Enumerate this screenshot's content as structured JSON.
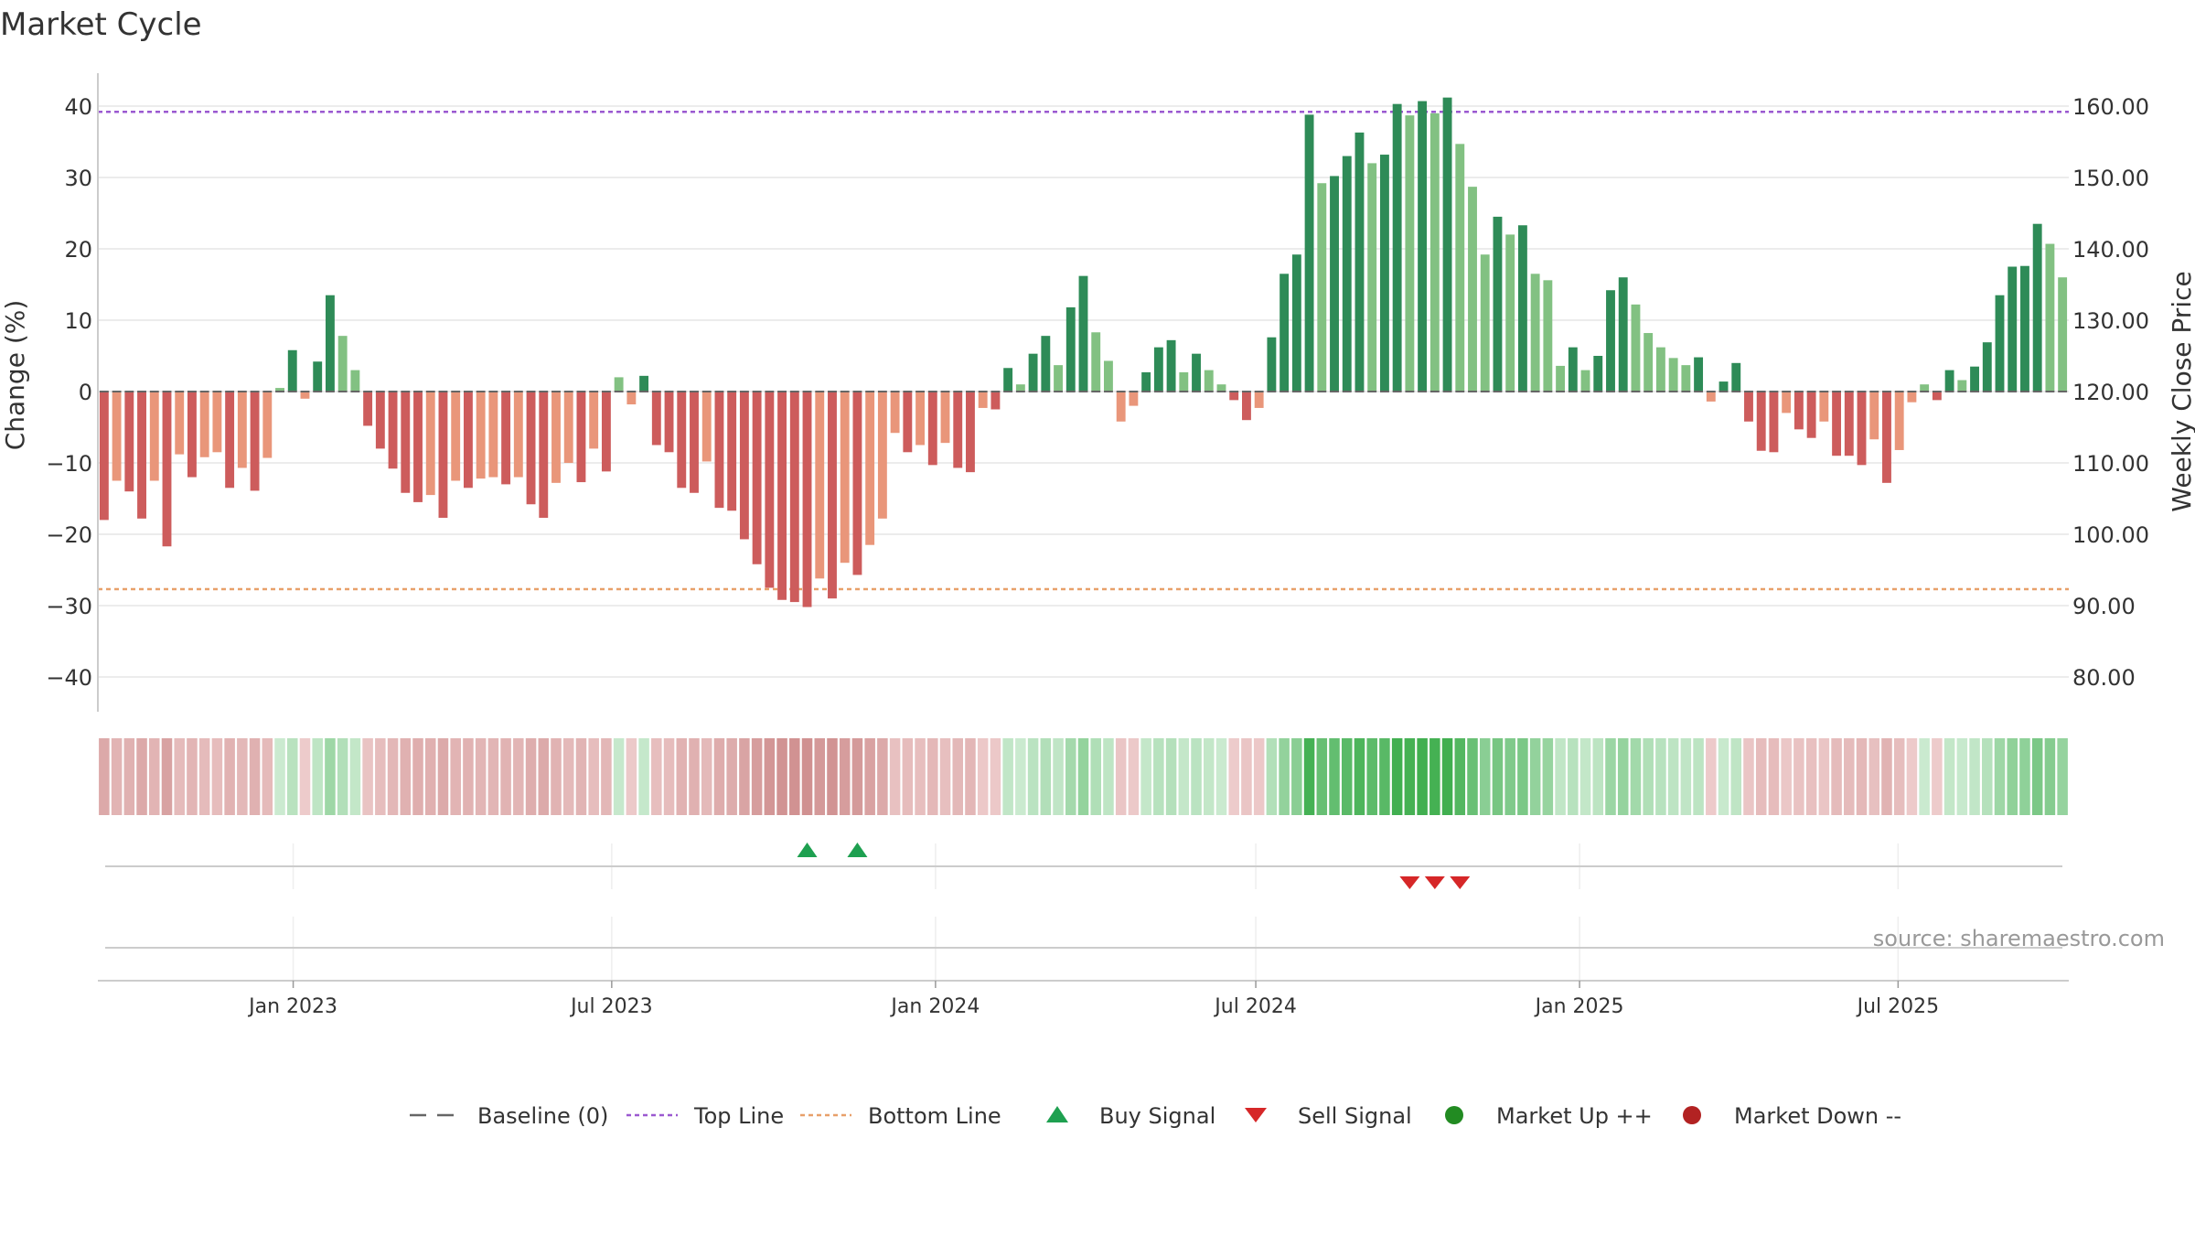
{
  "chart_data": {
    "type": "bar",
    "title": "Market Cycle",
    "ylabel": "Change (%)",
    "y2label": "Weekly Close Price",
    "ylim": [
      -45,
      45
    ],
    "y2lim": [
      75,
      163
    ],
    "y_ticks": [
      40,
      30,
      20,
      10,
      0,
      -10,
      -20,
      -30,
      -40
    ],
    "y_tick_labels": [
      "40",
      "30",
      "20",
      "10",
      "0",
      "−10",
      "−20",
      "−30",
      "−40"
    ],
    "y2_ticks": [
      "160.00",
      "150.00",
      "140.00",
      "130.00",
      "120.00",
      "110.00",
      "100.00",
      "90.00",
      "80.00"
    ],
    "x_range": [
      "2022-09-12",
      "2025-10-06"
    ],
    "x_ticks": [
      {
        "date": "2023-01-01",
        "label": "Jan 2023"
      },
      {
        "date": "2023-07-01",
        "label": "Jul 2023"
      },
      {
        "date": "2024-01-01",
        "label": "Jan 2024"
      },
      {
        "date": "2024-07-01",
        "label": "Jul 2024"
      },
      {
        "date": "2025-01-01",
        "label": "Jan 2025"
      },
      {
        "date": "2025-07-01",
        "label": "Jul 2025"
      }
    ],
    "first_week": "2022-09-12",
    "values": [
      -18,
      -12.5,
      -14,
      -17.8,
      -12.5,
      -21.7,
      -8.8,
      -12,
      -9.2,
      -8.5,
      -13.5,
      -10.7,
      -13.9,
      -9.3,
      0.5,
      5.8,
      -1,
      4.2,
      13.5,
      7.8,
      3,
      -4.8,
      -8,
      -10.8,
      -14.2,
      -15.5,
      -14.5,
      -17.7,
      -12.5,
      -13.5,
      -12.2,
      -12,
      -13,
      -12,
      -15.8,
      -17.7,
      -12.8,
      -10,
      -12.7,
      -8,
      -11.2,
      2,
      -1.8,
      2.2,
      -7.5,
      -8.5,
      -13.5,
      -14.2,
      -9.8,
      -16.3,
      -16.7,
      -20.7,
      -24.2,
      -27.5,
      -29.2,
      -29.5,
      -30.2,
      -26.2,
      -29,
      -24,
      -25.7,
      -21.5,
      -17.8,
      -5.8,
      -8.5,
      -7.5,
      -10.3,
      -7.2,
      -10.7,
      -11.3,
      -2.3,
      -2.5,
      3.3,
      1,
      5.3,
      7.8,
      3.7,
      11.8,
      16.2,
      8.3,
      4.3,
      -4.2,
      -2,
      2.7,
      6.2,
      7.2,
      2.7,
      5.3,
      3,
      1,
      -1.2,
      -4,
      -2.3,
      7.6,
      16.5,
      19.2,
      38.8,
      29.2,
      30.2,
      33,
      36.3,
      32,
      33.2,
      40.3,
      38.7,
      40.7,
      39,
      41.2,
      34.7,
      28.7,
      19.2,
      24.5,
      22,
      23.3,
      16.5,
      15.6,
      3.6,
      6.2,
      3,
      5,
      14.2,
      16,
      12.2,
      8.2,
      6.2,
      4.7,
      3.7,
      4.8,
      -1.4,
      1.4,
      4,
      -4.2,
      -8.3,
      -8.5,
      -3,
      -5.3,
      -6.5,
      -4.2,
      -9,
      -9,
      -10.3,
      -6.7,
      -12.8,
      -8.2,
      -1.5,
      1,
      -1.2,
      3,
      1.6,
      3.5,
      6.9,
      13.5,
      17.5,
      17.6,
      23.5,
      20.7,
      16
    ],
    "top_line": 39.2,
    "bottom_line": -27.7,
    "buy_signals": [
      56,
      60
    ],
    "sell_signals": [
      104,
      106,
      108
    ],
    "market_up_signals": [],
    "market_down_signals": [],
    "colors": {
      "up_strong": "#2e8b57",
      "up_weak": "#82c182",
      "down_strong": "#cd5c5c",
      "down_weak": "#e9967a",
      "top_line": "#9b59d0",
      "bottom_line": "#e8a06a",
      "baseline": "#666666",
      "buy": "#1ea050",
      "sell": "#d62728",
      "market_up": "#228b22",
      "market_down": "#b22222"
    },
    "legend": [
      {
        "label": "Baseline (0)",
        "kind": "dash"
      },
      {
        "label": "Top Line",
        "kind": "dot-purple"
      },
      {
        "label": "Bottom Line",
        "kind": "dot-orange"
      },
      {
        "label": "Buy Signal",
        "kind": "tri-up"
      },
      {
        "label": "Sell Signal",
        "kind": "tri-down"
      },
      {
        "label": "Market Up ++",
        "kind": "circle-green"
      },
      {
        "label": "Market Down --",
        "kind": "circle-red"
      }
    ],
    "source": "source: sharemaestro.com"
  }
}
